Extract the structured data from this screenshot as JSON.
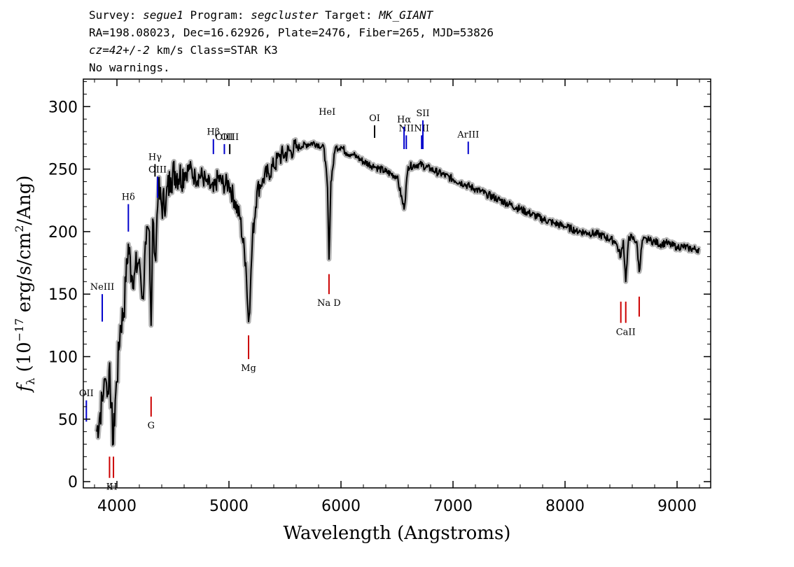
{
  "header": {
    "line1_parts": [
      {
        "t": "Survey: ",
        "i": false
      },
      {
        "t": "segue1",
        "i": true
      },
      {
        "t": " Program: ",
        "i": false
      },
      {
        "t": "segcluster",
        "i": true
      },
      {
        "t": " Target: ",
        "i": false
      },
      {
        "t": "MK_GIANT",
        "i": true
      }
    ],
    "line2": "RA=198.08023, Dec=16.62926, Plate=2476, Fiber=265, MJD=53826",
    "line3_parts": [
      {
        "t": "cz=42+/-2",
        "i": true
      },
      {
        "t": " km/s Class=STAR K3",
        "i": false
      }
    ],
    "line4": "No warnings."
  },
  "chart_data": {
    "type": "line",
    "xlabel": "Wavelength (Angstroms)",
    "ylabel_parts": [
      "f",
      "λ",
      " (10",
      "−17",
      " erg/s/cm",
      "2",
      "/Ang)"
    ],
    "xlim": [
      3700,
      9300
    ],
    "ylim": [
      -5,
      322
    ],
    "x_ticks": [
      4000,
      5000,
      6000,
      7000,
      8000,
      9000
    ],
    "y_ticks": [
      0,
      50,
      100,
      150,
      200,
      250,
      300
    ],
    "series": [
      {
        "color": "#000000",
        "x": [
          3820,
          3850,
          3880,
          3900,
          3920,
          3935,
          3950,
          3968,
          3985,
          4000,
          4030,
          4060,
          4080,
          4102,
          4130,
          4160,
          4200,
          4230,
          4260,
          4290,
          4305,
          4320,
          4340,
          4370,
          4400,
          4440,
          4480,
          4520,
          4560,
          4600,
          4650,
          4700,
          4750,
          4800,
          4861,
          4900,
          4950,
          5000,
          5050,
          5100,
          5150,
          5175,
          5190,
          5210,
          5250,
          5300,
          5350,
          5400,
          5450,
          5500,
          5550,
          5600,
          5650,
          5700,
          5750,
          5800,
          5850,
          5880,
          5893,
          5910,
          5950,
          6000,
          6050,
          6100,
          6150,
          6200,
          6300,
          6400,
          6500,
          6563,
          6600,
          6700,
          6800,
          6900,
          7000,
          7100,
          7200,
          7300,
          7400,
          7500,
          7600,
          7700,
          7800,
          7900,
          8000,
          8100,
          8200,
          8300,
          8400,
          8450,
          8498,
          8520,
          8542,
          8570,
          8600,
          8640,
          8662,
          8690,
          8750,
          8800,
          8850,
          8900,
          8950,
          9000,
          9050,
          9100,
          9150,
          9200
        ],
        "y": [
          40,
          55,
          70,
          82,
          72,
          95,
          60,
          30,
          65,
          80,
          125,
          135,
          160,
          190,
          165,
          168,
          178,
          148,
          190,
          200,
          125,
          210,
          180,
          232,
          220,
          228,
          243,
          248,
          245,
          247,
          250,
          243,
          245,
          240,
          232,
          243,
          238,
          238,
          225,
          210,
          175,
          128,
          150,
          195,
          232,
          242,
          247,
          252,
          260,
          262,
          265,
          267,
          268,
          270,
          271,
          270,
          266,
          235,
          178,
          240,
          267,
          268,
          263,
          262,
          259,
          256,
          252,
          248,
          244,
          218,
          252,
          254,
          250,
          246,
          242,
          238,
          234,
          230,
          226,
          222,
          218,
          214,
          210,
          207,
          204,
          201,
          199,
          198,
          194,
          192,
          180,
          193,
          160,
          196,
          195,
          192,
          168,
          193,
          193,
          192,
          190,
          191,
          189,
          188,
          188,
          187,
          186,
          186
        ]
      }
    ],
    "spectral_lines": [
      {
        "label": "HeI",
        "x": 5876,
        "line_top": 290,
        "line_bottom": 290,
        "color": "#000000",
        "pos": "above"
      },
      {
        "label": "OI",
        "x": 6300,
        "line_top": 285,
        "line_bottom": 275,
        "color": "#000000",
        "pos": "above"
      },
      {
        "label": "NII",
        "x": 6583,
        "line_top": 277,
        "line_bottom": 266,
        "color": "#0000cc",
        "pos": "above"
      },
      {
        "label": "Hα",
        "x": 6563,
        "line_top": 284,
        "line_bottom": 266,
        "color": "#0000cc",
        "pos": "above"
      },
      {
        "label": "NII",
        "x": 6720,
        "line_top": 277,
        "line_bottom": 266,
        "color": "#0000cc",
        "pos": "above"
      },
      {
        "label": "SII",
        "x": 6731,
        "line_top": 289,
        "line_bottom": 266,
        "color": "#0000cc",
        "pos": "above"
      },
      {
        "label": "ArIII",
        "x": 7136,
        "line_top": 272,
        "line_bottom": 262,
        "color": "#0000cc",
        "pos": "above"
      },
      {
        "label": "Hβ",
        "x": 4861,
        "line_top": 274,
        "line_bottom": 262,
        "color": "#0000cc",
        "pos": "above"
      },
      {
        "label": "OIII",
        "x": 4959,
        "line_top": 270,
        "line_bottom": 262,
        "color": "#0000cc",
        "pos": "above"
      },
      {
        "label": "OIII",
        "x": 5007,
        "line_top": 270,
        "line_bottom": 262,
        "color": "#000000",
        "pos": "above"
      },
      {
        "label": "Hγ",
        "x": 4340,
        "line_top": 254,
        "line_bottom": 244,
        "color": "#000000",
        "pos": "above"
      },
      {
        "label": "OIII",
        "x": 4363,
        "line_top": 244,
        "line_bottom": 227,
        "color": "#0000cc",
        "pos": "above"
      },
      {
        "label": "Hδ",
        "x": 4102,
        "line_top": 222,
        "line_bottom": 200,
        "color": "#0000cc",
        "pos": "above"
      },
      {
        "label": "NeIII",
        "x": 3869,
        "line_top": 150,
        "line_bottom": 128,
        "color": "#0000cc",
        "pos": "above"
      },
      {
        "label": "OII",
        "x": 3727,
        "line_top": 65,
        "line_bottom": 48,
        "color": "#0000cc",
        "pos": "above"
      },
      {
        "label": "Na D",
        "x": 5893,
        "line_top": 166,
        "line_bottom": 150,
        "color": "#cc0000",
        "pos": "below"
      },
      {
        "label": "Mg",
        "x": 5175,
        "line_top": 117,
        "line_bottom": 98,
        "color": "#cc0000",
        "pos": "below"
      },
      {
        "label": "G",
        "x": 4305,
        "line_top": 68,
        "line_bottom": 52,
        "color": "#cc0000",
        "pos": "below"
      },
      {
        "label": "K",
        "x": 3934,
        "line_top": 20,
        "line_bottom": 3,
        "color": "#cc0000",
        "pos": "below"
      },
      {
        "label": "H",
        "x": 3969,
        "line_top": 20,
        "line_bottom": 3,
        "color": "#cc0000",
        "pos": "below"
      },
      {
        "label": "CaII",
        "x": 8542,
        "line_top": 144,
        "line_bottom": 127,
        "color": "#cc0000",
        "pos": "below"
      },
      {
        "label": "",
        "x": 8498,
        "line_top": 144,
        "line_bottom": 127,
        "color": "#cc0000",
        "pos": "below"
      },
      {
        "label": "",
        "x": 8662,
        "line_top": 148,
        "line_bottom": 132,
        "color": "#cc0000",
        "pos": "below"
      }
    ],
    "grid": false,
    "noise_band_color": "#b4b4b4"
  }
}
